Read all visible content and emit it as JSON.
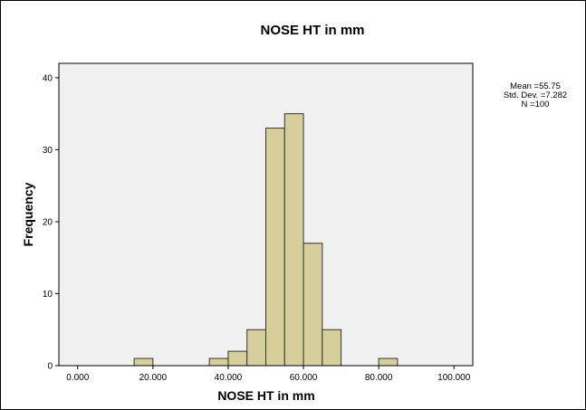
{
  "chart_data": {
    "type": "bar",
    "title": "NOSE HT in mm",
    "xlabel": "NOSE HT in mm",
    "ylabel": "Frequency",
    "xlim": [
      -5,
      105
    ],
    "ylim": [
      0,
      42
    ],
    "x_ticks": [
      0,
      20,
      40,
      60,
      80,
      100
    ],
    "x_tick_labels": [
      "0.000",
      "20.000",
      "40.000",
      "60.000",
      "80.000",
      "100.000"
    ],
    "y_ticks": [
      0,
      10,
      20,
      30,
      40
    ],
    "y_tick_labels": [
      "0",
      "10",
      "20",
      "30",
      "40"
    ],
    "bin_width": 5,
    "bins": [
      {
        "start": 15,
        "end": 20,
        "count": 1
      },
      {
        "start": 35,
        "end": 40,
        "count": 1
      },
      {
        "start": 40,
        "end": 45,
        "count": 2
      },
      {
        "start": 45,
        "end": 50,
        "count": 5
      },
      {
        "start": 50,
        "end": 55,
        "count": 33
      },
      {
        "start": 55,
        "end": 60,
        "count": 35
      },
      {
        "start": 60,
        "end": 65,
        "count": 17
      },
      {
        "start": 65,
        "end": 70,
        "count": 5
      },
      {
        "start": 80,
        "end": 85,
        "count": 1
      }
    ],
    "stats": {
      "mean_text": "Mean =55.75",
      "std_text": "Std. Dev. =7.282",
      "n_text": "N =100"
    },
    "colors": {
      "bar_fill": "#d6cf9c",
      "bar_stroke": "#333333",
      "plot_bg": "#f0f0f0"
    },
    "grid": false
  }
}
